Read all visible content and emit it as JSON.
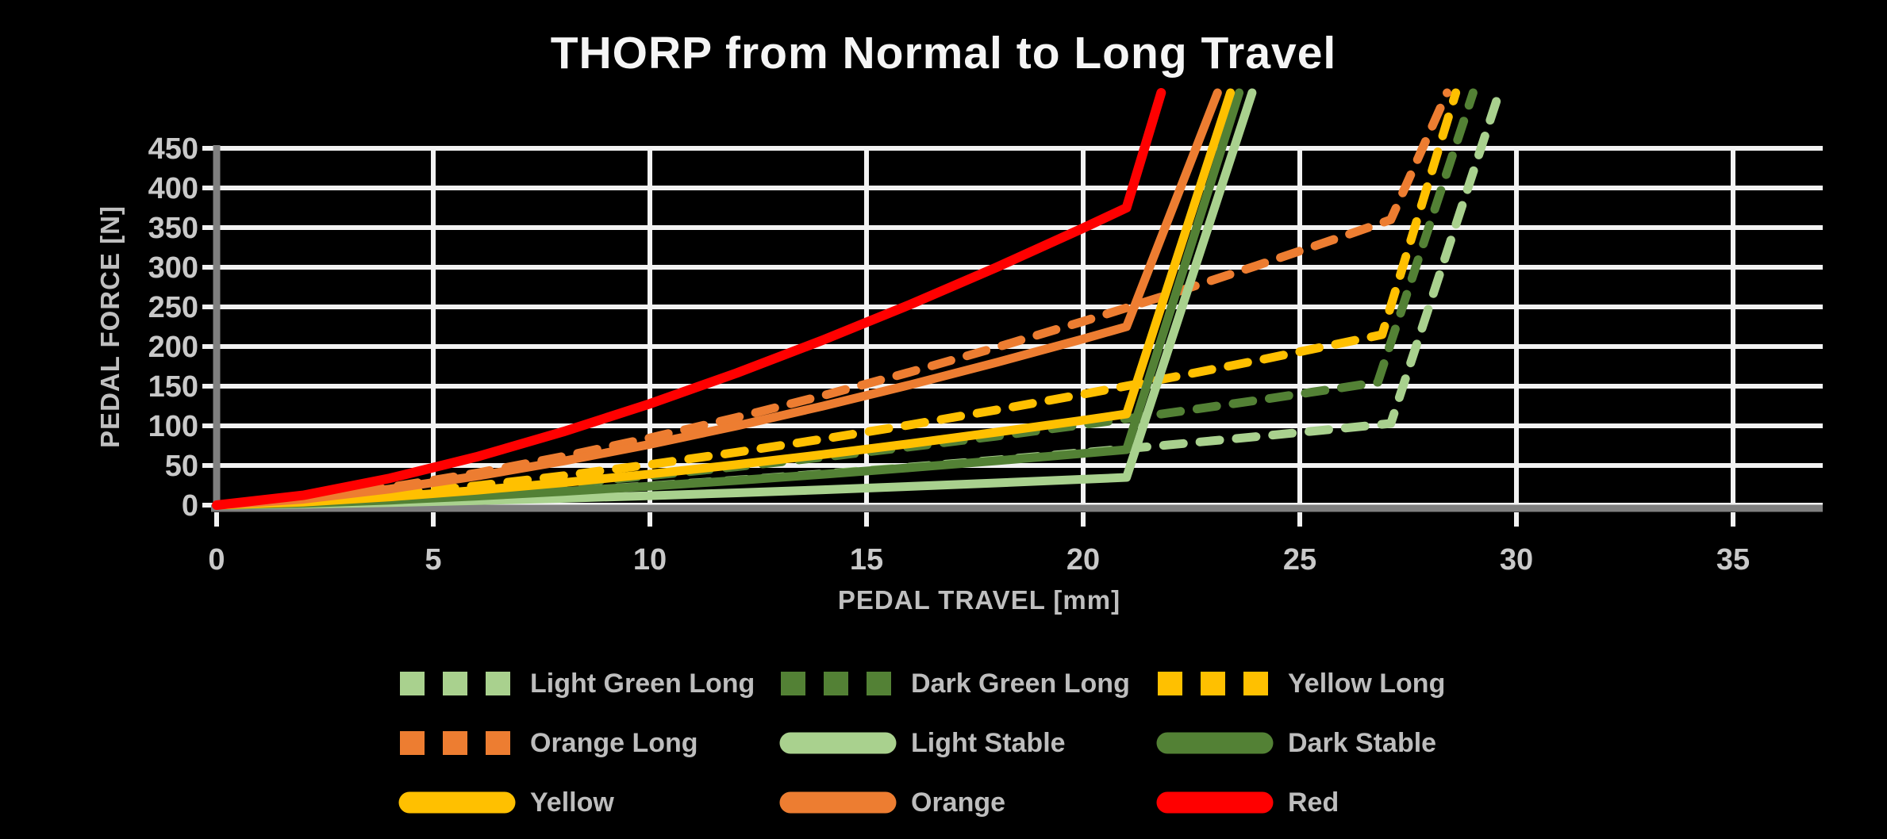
{
  "title": "THORP from Normal to Long Travel",
  "axes": {
    "x": {
      "label": "PEDAL TRAVEL [mm]",
      "ticks": [
        0,
        5,
        10,
        15,
        20,
        25,
        30,
        35
      ]
    },
    "y": {
      "label": "PEDAL FORCE [N]",
      "ticks": [
        0,
        50,
        100,
        150,
        200,
        250,
        300,
        350,
        400,
        450
      ]
    }
  },
  "colors": {
    "light_green": "#a9d18e",
    "dark_green": "#538135",
    "yellow": "#ffc000",
    "orange": "#ed7d31",
    "red": "#ff0000",
    "grid": "#f2f2f2",
    "axis": "#7f7f7f",
    "title_text": "#f5f5f5",
    "label_text": "#c9c9c9"
  },
  "chart_data": {
    "type": "line",
    "title": "THORP from Normal to Long Travel",
    "xlabel": "PEDAL TRAVEL [mm]",
    "ylabel": "PEDAL FORCE [N]",
    "xlim": [
      0,
      37
    ],
    "ylim": [
      0,
      450
    ],
    "grid": true,
    "legend_position": "bottom",
    "series": [
      {
        "name": "Light Green Long",
        "color": "#a9d18e",
        "style": "dashed",
        "points": [
          [
            0,
            0
          ],
          [
            2,
            2.4
          ],
          [
            4,
            6.4
          ],
          [
            6,
            11.6
          ],
          [
            8,
            17.6
          ],
          [
            10,
            24.3
          ],
          [
            12,
            31.6
          ],
          [
            14,
            39.5
          ],
          [
            16,
            48
          ],
          [
            18,
            56.9
          ],
          [
            20,
            66.3
          ],
          [
            22,
            76.1
          ],
          [
            24,
            86.4
          ],
          [
            26,
            97
          ],
          [
            27.1,
            103
          ],
          [
            29.6,
            520
          ]
        ]
      },
      {
        "name": "Dark Green Long",
        "color": "#538135",
        "style": "dashed",
        "points": [
          [
            0,
            0
          ],
          [
            2,
            3.6
          ],
          [
            4,
            9.8
          ],
          [
            6,
            17.7
          ],
          [
            8,
            26.9
          ],
          [
            10,
            37.1
          ],
          [
            12,
            48.4
          ],
          [
            14,
            60.5
          ],
          [
            16,
            73.4
          ],
          [
            18,
            87
          ],
          [
            20,
            101.4
          ],
          [
            22,
            116.4
          ],
          [
            24,
            132.1
          ],
          [
            26,
            148.3
          ],
          [
            26.8,
            155
          ],
          [
            29,
            520
          ]
        ]
      },
      {
        "name": "Yellow Long",
        "color": "#ffc000",
        "style": "dashed",
        "points": [
          [
            0,
            0
          ],
          [
            2,
            5
          ],
          [
            4,
            13.5
          ],
          [
            6,
            24.4
          ],
          [
            8,
            37
          ],
          [
            10,
            51.2
          ],
          [
            12,
            66.7
          ],
          [
            14,
            83.4
          ],
          [
            16,
            101.2
          ],
          [
            18,
            120.1
          ],
          [
            20,
            139.9
          ],
          [
            22,
            160.6
          ],
          [
            24,
            182.2
          ],
          [
            26,
            204.7
          ],
          [
            26.9,
            215
          ],
          [
            28.6,
            520
          ]
        ]
      },
      {
        "name": "Orange Long",
        "color": "#ed7d31",
        "style": "dashed",
        "points": [
          [
            0,
            0
          ],
          [
            2,
            8.2
          ],
          [
            4,
            22.5
          ],
          [
            6,
            40.4
          ],
          [
            8,
            61.4
          ],
          [
            10,
            84.8
          ],
          [
            12,
            110.5
          ],
          [
            14,
            138.2
          ],
          [
            16,
            167.7
          ],
          [
            18,
            198.9
          ],
          [
            20,
            231.7
          ],
          [
            22,
            266
          ],
          [
            24,
            301.9
          ],
          [
            26,
            339
          ],
          [
            27.1,
            360
          ],
          [
            28.4,
            520
          ]
        ]
      },
      {
        "name": "Light Stable",
        "color": "#a9d18e",
        "style": "solid",
        "points": [
          [
            0,
            0
          ],
          [
            2,
            1.2
          ],
          [
            4,
            3.2
          ],
          [
            6,
            5.7
          ],
          [
            8,
            8.6
          ],
          [
            10,
            11.9
          ],
          [
            12,
            15.5
          ],
          [
            14,
            19.4
          ],
          [
            16,
            23.6
          ],
          [
            18,
            28
          ],
          [
            20,
            32.6
          ],
          [
            21,
            35
          ],
          [
            23.9,
            520
          ]
        ]
      },
      {
        "name": "Dark Stable",
        "color": "#538135",
        "style": "solid",
        "points": [
          [
            0,
            0
          ],
          [
            2,
            2.3
          ],
          [
            4,
            6.3
          ],
          [
            6,
            11.4
          ],
          [
            8,
            17.3
          ],
          [
            10,
            23.9
          ],
          [
            12,
            31.1
          ],
          [
            14,
            38.9
          ],
          [
            16,
            47.2
          ],
          [
            18,
            56
          ],
          [
            20,
            65.2
          ],
          [
            21,
            70
          ],
          [
            23.6,
            520
          ]
        ]
      },
      {
        "name": "Yellow",
        "color": "#ffc000",
        "style": "solid",
        "points": [
          [
            0,
            0
          ],
          [
            2,
            3.8
          ],
          [
            4,
            10.4
          ],
          [
            6,
            18.7
          ],
          [
            8,
            28.4
          ],
          [
            10,
            39.2
          ],
          [
            12,
            51.1
          ],
          [
            14,
            63.9
          ],
          [
            16,
            77.5
          ],
          [
            18,
            92
          ],
          [
            20,
            107.1
          ],
          [
            21,
            115
          ],
          [
            23.4,
            520
          ]
        ]
      },
      {
        "name": "Orange",
        "color": "#ed7d31",
        "style": "solid",
        "points": [
          [
            0,
            0
          ],
          [
            2,
            7.4
          ],
          [
            4,
            20.3
          ],
          [
            6,
            36.6
          ],
          [
            8,
            55.5
          ],
          [
            10,
            76.7
          ],
          [
            12,
            99.9
          ],
          [
            14,
            125
          ],
          [
            16,
            151.7
          ],
          [
            18,
            179.9
          ],
          [
            20,
            209.6
          ],
          [
            21,
            225
          ],
          [
            23.1,
            520
          ]
        ]
      },
      {
        "name": "Red",
        "color": "#ff0000",
        "style": "solid",
        "points": [
          [
            0,
            0
          ],
          [
            2,
            12.4
          ],
          [
            4,
            33.9
          ],
          [
            6,
            60.9
          ],
          [
            8,
            92.6
          ],
          [
            10,
            127.8
          ],
          [
            12,
            166.5
          ],
          [
            14,
            208.3
          ],
          [
            16,
            252.8
          ],
          [
            18,
            299.9
          ],
          [
            20,
            349.4
          ],
          [
            21,
            375
          ],
          [
            21.8,
            520
          ]
        ]
      }
    ]
  },
  "legend": {
    "items": [
      {
        "label": "Light Green Long",
        "color": "#a9d18e",
        "style": "dashed"
      },
      {
        "label": "Dark Green Long",
        "color": "#538135",
        "style": "dashed"
      },
      {
        "label": "Yellow Long",
        "color": "#ffc000",
        "style": "dashed"
      },
      {
        "label": "Orange Long",
        "color": "#ed7d31",
        "style": "dashed"
      },
      {
        "label": "Light Stable",
        "color": "#a9d18e",
        "style": "solid"
      },
      {
        "label": "Dark Stable",
        "color": "#538135",
        "style": "solid"
      },
      {
        "label": "Yellow",
        "color": "#ffc000",
        "style": "solid"
      },
      {
        "label": "Orange",
        "color": "#ed7d31",
        "style": "solid"
      },
      {
        "label": "Red",
        "color": "#ff0000",
        "style": "solid"
      }
    ]
  }
}
